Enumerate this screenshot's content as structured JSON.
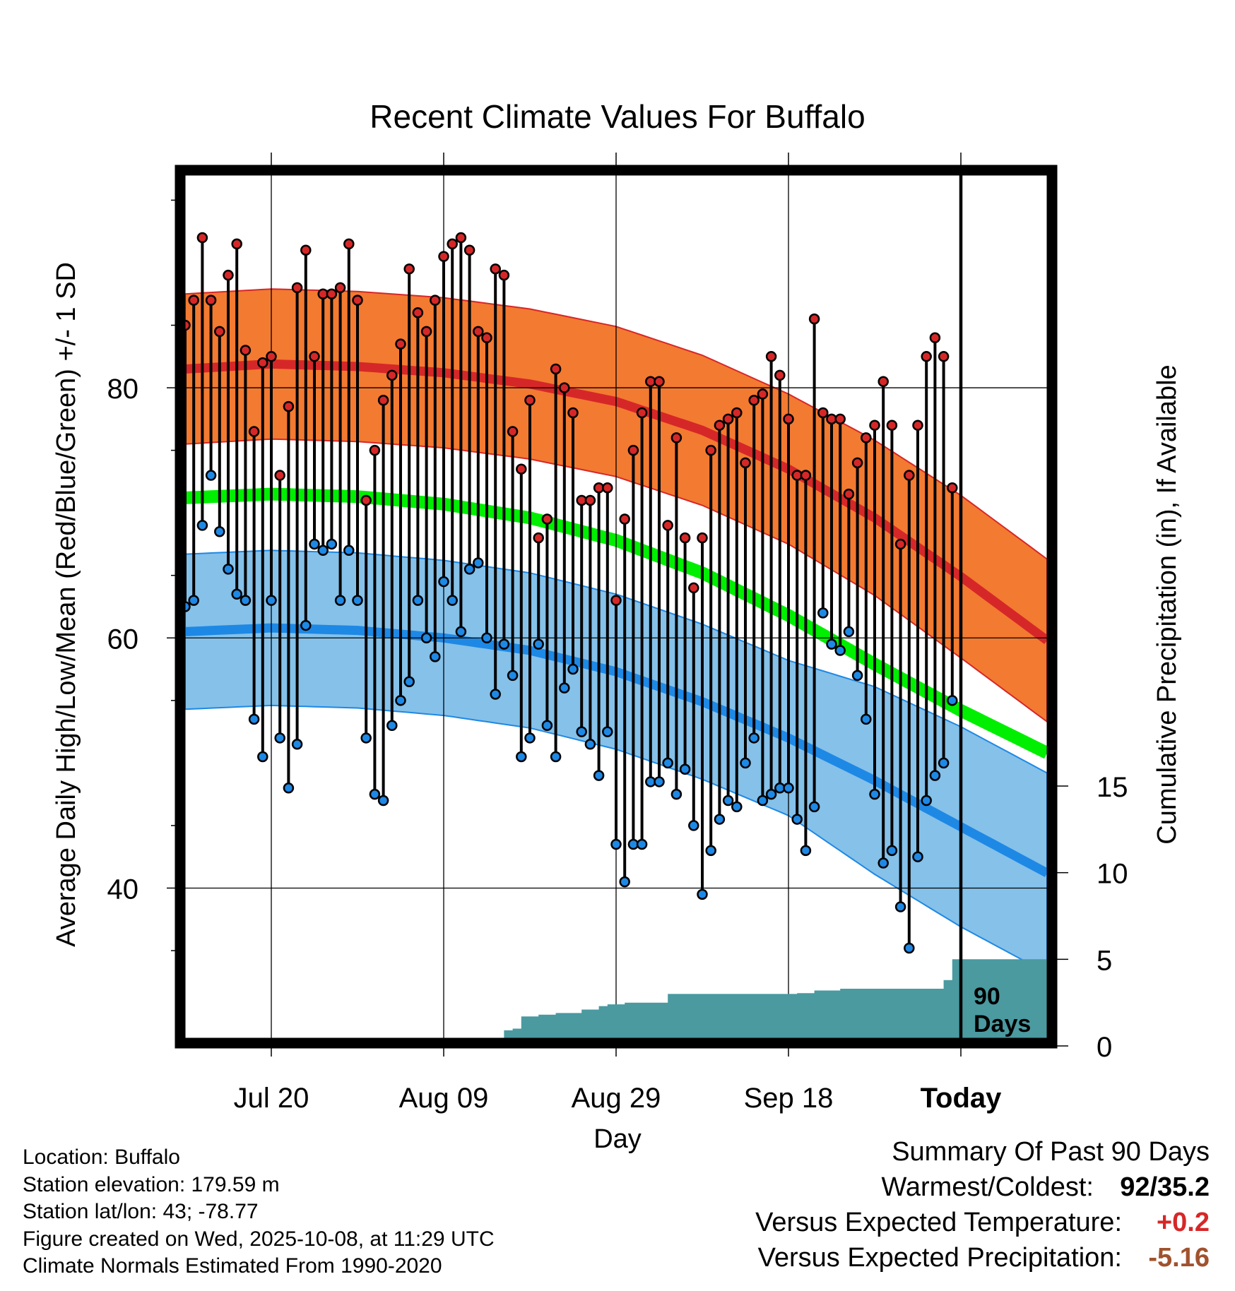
{
  "chart_data": {
    "type": "line",
    "title": "Recent Climate Values For Buffalo",
    "xlabel": "Day",
    "ylabel": "Average Daily High/Low/Mean (Red/Blue/Green) +/- 1 SD",
    "ylabel_right": "Cumulative Precipitation (in), If Available",
    "x_tick_labels": [
      "Jul 20",
      "Aug 09",
      "Aug 29",
      "Sep 18",
      "Today"
    ],
    "x_tick_days": [
      10,
      30,
      50,
      70,
      90
    ],
    "xlim": [
      0,
      100
    ],
    "ylim": [
      28,
      97
    ],
    "y_ticks": [
      40,
      60,
      80
    ],
    "y2_ticks": [
      0,
      5,
      10,
      15
    ],
    "y2lim": [
      0,
      15
    ],
    "today_label": "90 Days",
    "normals": {
      "days": [
        0,
        10,
        20,
        30,
        40,
        50,
        60,
        70,
        80,
        90,
        100
      ],
      "high_mean": [
        81.5,
        81.9,
        81.7,
        81.2,
        80.3,
        78.9,
        76.6,
        73.5,
        69.6,
        64.9,
        59.8
      ],
      "high_sd": [
        6,
        6,
        6,
        6,
        6,
        6,
        6,
        6,
        6.2,
        6.5,
        6.5
      ],
      "mean": [
        71.2,
        71.5,
        71.3,
        70.7,
        69.6,
        67.8,
        65.2,
        61.8,
        57.9,
        54.2,
        50.8
      ],
      "low_mean": [
        60.5,
        60.8,
        60.6,
        60.0,
        59.0,
        57.3,
        54.9,
        52.0,
        48.6,
        44.9,
        41.2
      ],
      "low_sd": [
        6.2,
        6.2,
        6.2,
        6.2,
        6.2,
        6.2,
        6.2,
        6.2,
        7.5,
        8,
        8
      ]
    },
    "series": [
      {
        "name": "Daily High",
        "color": "#d62728",
        "values": [
          85,
          87,
          92,
          87,
          84.5,
          89,
          91.5,
          83,
          76.5,
          82,
          82.5,
          73,
          78.5,
          88,
          91,
          82.5,
          87.5,
          87.5,
          88,
          91.5,
          87,
          71,
          75,
          79,
          81,
          83.5,
          89.5,
          86,
          84.5,
          87,
          90.5,
          91.5,
          92,
          91,
          84.5,
          84,
          89.5,
          89,
          76.5,
          73.5,
          79,
          68,
          69.5,
          81.5,
          80,
          78,
          71,
          71,
          72,
          72,
          63,
          69.5,
          75,
          78,
          80.5,
          80.5,
          69,
          76,
          68,
          64,
          68,
          75,
          77,
          77.5,
          78,
          74,
          79,
          79.5,
          82.5,
          81,
          77.5,
          73,
          73,
          85.5,
          78,
          77.5,
          77.5,
          71.5,
          74,
          76,
          77,
          80.5,
          77,
          67.5,
          73,
          77,
          82.5,
          84,
          82.5,
          72
        ]
      },
      {
        "name": "Daily Low",
        "color": "#1e88e5",
        "values": [
          62.5,
          63,
          69,
          73,
          68.5,
          65.5,
          63.5,
          63,
          53.5,
          50.5,
          63,
          52,
          48,
          51.5,
          61,
          67.5,
          67,
          67.5,
          63,
          67,
          63,
          52,
          47.5,
          47,
          53,
          55,
          56.5,
          63,
          60,
          58.5,
          64.5,
          63,
          60.5,
          65.5,
          66,
          60,
          55.5,
          59.5,
          57,
          50.5,
          52,
          59.5,
          53,
          50.5,
          56,
          57.5,
          52.5,
          51.5,
          49,
          52.5,
          43.5,
          40.5,
          43.5,
          43.5,
          48.5,
          48.5,
          50,
          47.5,
          49.5,
          45,
          39.5,
          43,
          45.5,
          47,
          46.5,
          50,
          52,
          47,
          47.5,
          48,
          48,
          45.5,
          43,
          46.5,
          62,
          59.5,
          59,
          60.5,
          57,
          53.5,
          47.5,
          42,
          43,
          38.5,
          35.2,
          42.5,
          47,
          49,
          50,
          55
        ]
      }
    ],
    "precip": {
      "days": [
        0,
        21,
        21,
        27,
        27,
        33,
        33,
        34,
        34,
        37,
        37,
        38,
        38,
        39,
        39,
        41,
        41,
        43,
        43,
        46,
        46,
        48,
        48,
        49,
        49,
        51,
        51,
        55,
        55,
        56,
        56,
        58,
        58,
        61,
        61,
        69,
        69,
        71,
        71,
        73,
        73,
        76,
        76,
        78,
        78,
        81,
        81,
        86,
        86,
        88,
        88,
        89,
        89,
        100
      ],
      "values": [
        0,
        0,
        0.1,
        0.1,
        0.15,
        0.15,
        0.2,
        0.2,
        0.3,
        0.3,
        0.9,
        0.9,
        1.0,
        1.0,
        1.7,
        1.7,
        1.8,
        1.8,
        1.9,
        1.9,
        2.1,
        2.1,
        2.3,
        2.3,
        2.4,
        2.4,
        2.5,
        2.5,
        2.5,
        2.5,
        3.0,
        3.0,
        3.0,
        3.0,
        3.0,
        3.0,
        3.0,
        3.0,
        3.05,
        3.05,
        3.2,
        3.2,
        3.3,
        3.3,
        3.3,
        3.3,
        3.3,
        3.3,
        3.3,
        3.3,
        3.8,
        3.8,
        5.0,
        5.0
      ]
    }
  },
  "info": {
    "location": "Location: Buffalo",
    "elevation": "Station elevation: 179.59 m",
    "latlon": "Station lat/lon: 43; -78.77",
    "created": "Figure created on Wed, 2025-10-08, at 11:29 UTC",
    "normals": "Climate Normals Estimated From 1990-2020"
  },
  "summary": {
    "heading": "Summary Of Past 90 Days",
    "warm_cold_label": "Warmest/Coldest:",
    "warm_cold_value": "92/35.2",
    "temp_label": "Versus Expected Temperature:",
    "temp_value": "+0.2",
    "temp_color": "#d62728",
    "precip_label": "Versus Expected Precipitation:",
    "precip_value": "-5.16",
    "precip_color": "#a0522d"
  },
  "colors": {
    "high_band": "#f37a31",
    "high_line": "#d62728",
    "mean_line": "#00ee00",
    "low_band": "#85c1e9",
    "low_line": "#1e88e5",
    "precip_fill": "#4a9aa0"
  }
}
